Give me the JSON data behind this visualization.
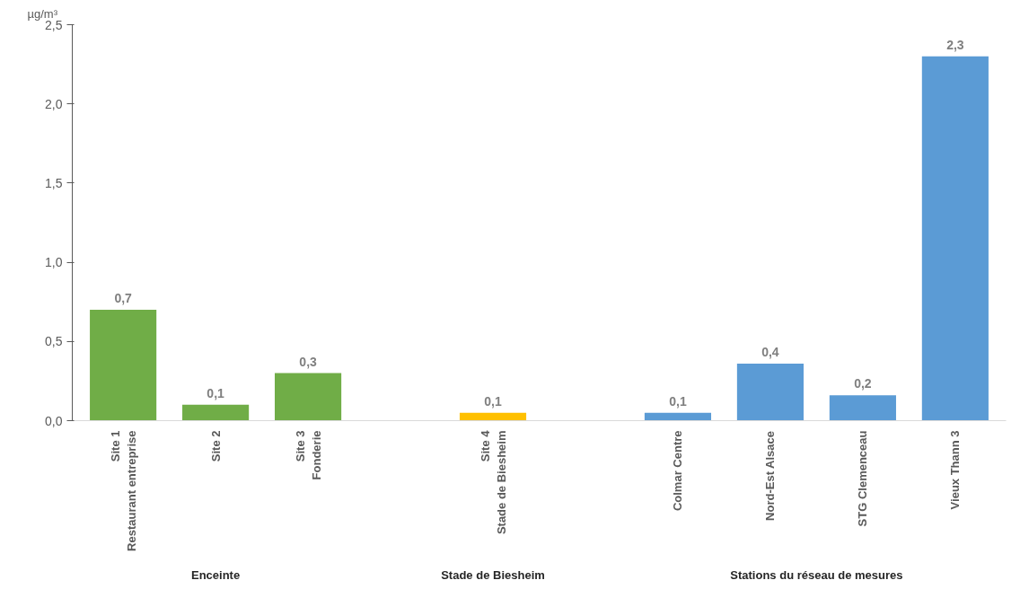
{
  "chart_data": {
    "type": "bar",
    "ylabel": "µg/m³",
    "categories": [
      "Site 1\nRestaurant entreprise",
      "Site 2",
      "Site 3\nFonderie",
      null,
      "Site 4\nStade de Biesheim",
      null,
      "Colmar Centre",
      "Nord-Est Alsace",
      "STG Clemenceau",
      "Vieux Thann 3"
    ],
    "values": [
      0.7,
      0.1,
      0.3,
      null,
      0.05,
      null,
      0.05,
      0.36,
      0.16,
      2.3
    ],
    "value_labels": [
      "0,7",
      "0,1",
      "0,3",
      null,
      "0,1",
      null,
      "0,1",
      "0,4",
      "0,2",
      "2,3"
    ],
    "colors": [
      "#70ad47",
      "#70ad47",
      "#70ad47",
      "#ffffff",
      "#ffc000",
      "#ffffff",
      "#5b9bd5",
      "#5b9bd5",
      "#5b9bd5",
      "#5b9bd5"
    ],
    "ylim": [
      0,
      2.5
    ],
    "yticks": [
      {
        "value": 0,
        "label": "0,0"
      },
      {
        "value": 0.5,
        "label": "0,5"
      },
      {
        "value": 1,
        "label": "1,0"
      },
      {
        "value": 1.5,
        "label": "1,5"
      },
      {
        "value": 2,
        "label": "2,0"
      },
      {
        "value": 2.5,
        "label": "2,5"
      }
    ],
    "annotations": [
      "Enceinte",
      "Stade de Biesheim",
      "Stations du réseau de mesures"
    ],
    "grid": false
  }
}
